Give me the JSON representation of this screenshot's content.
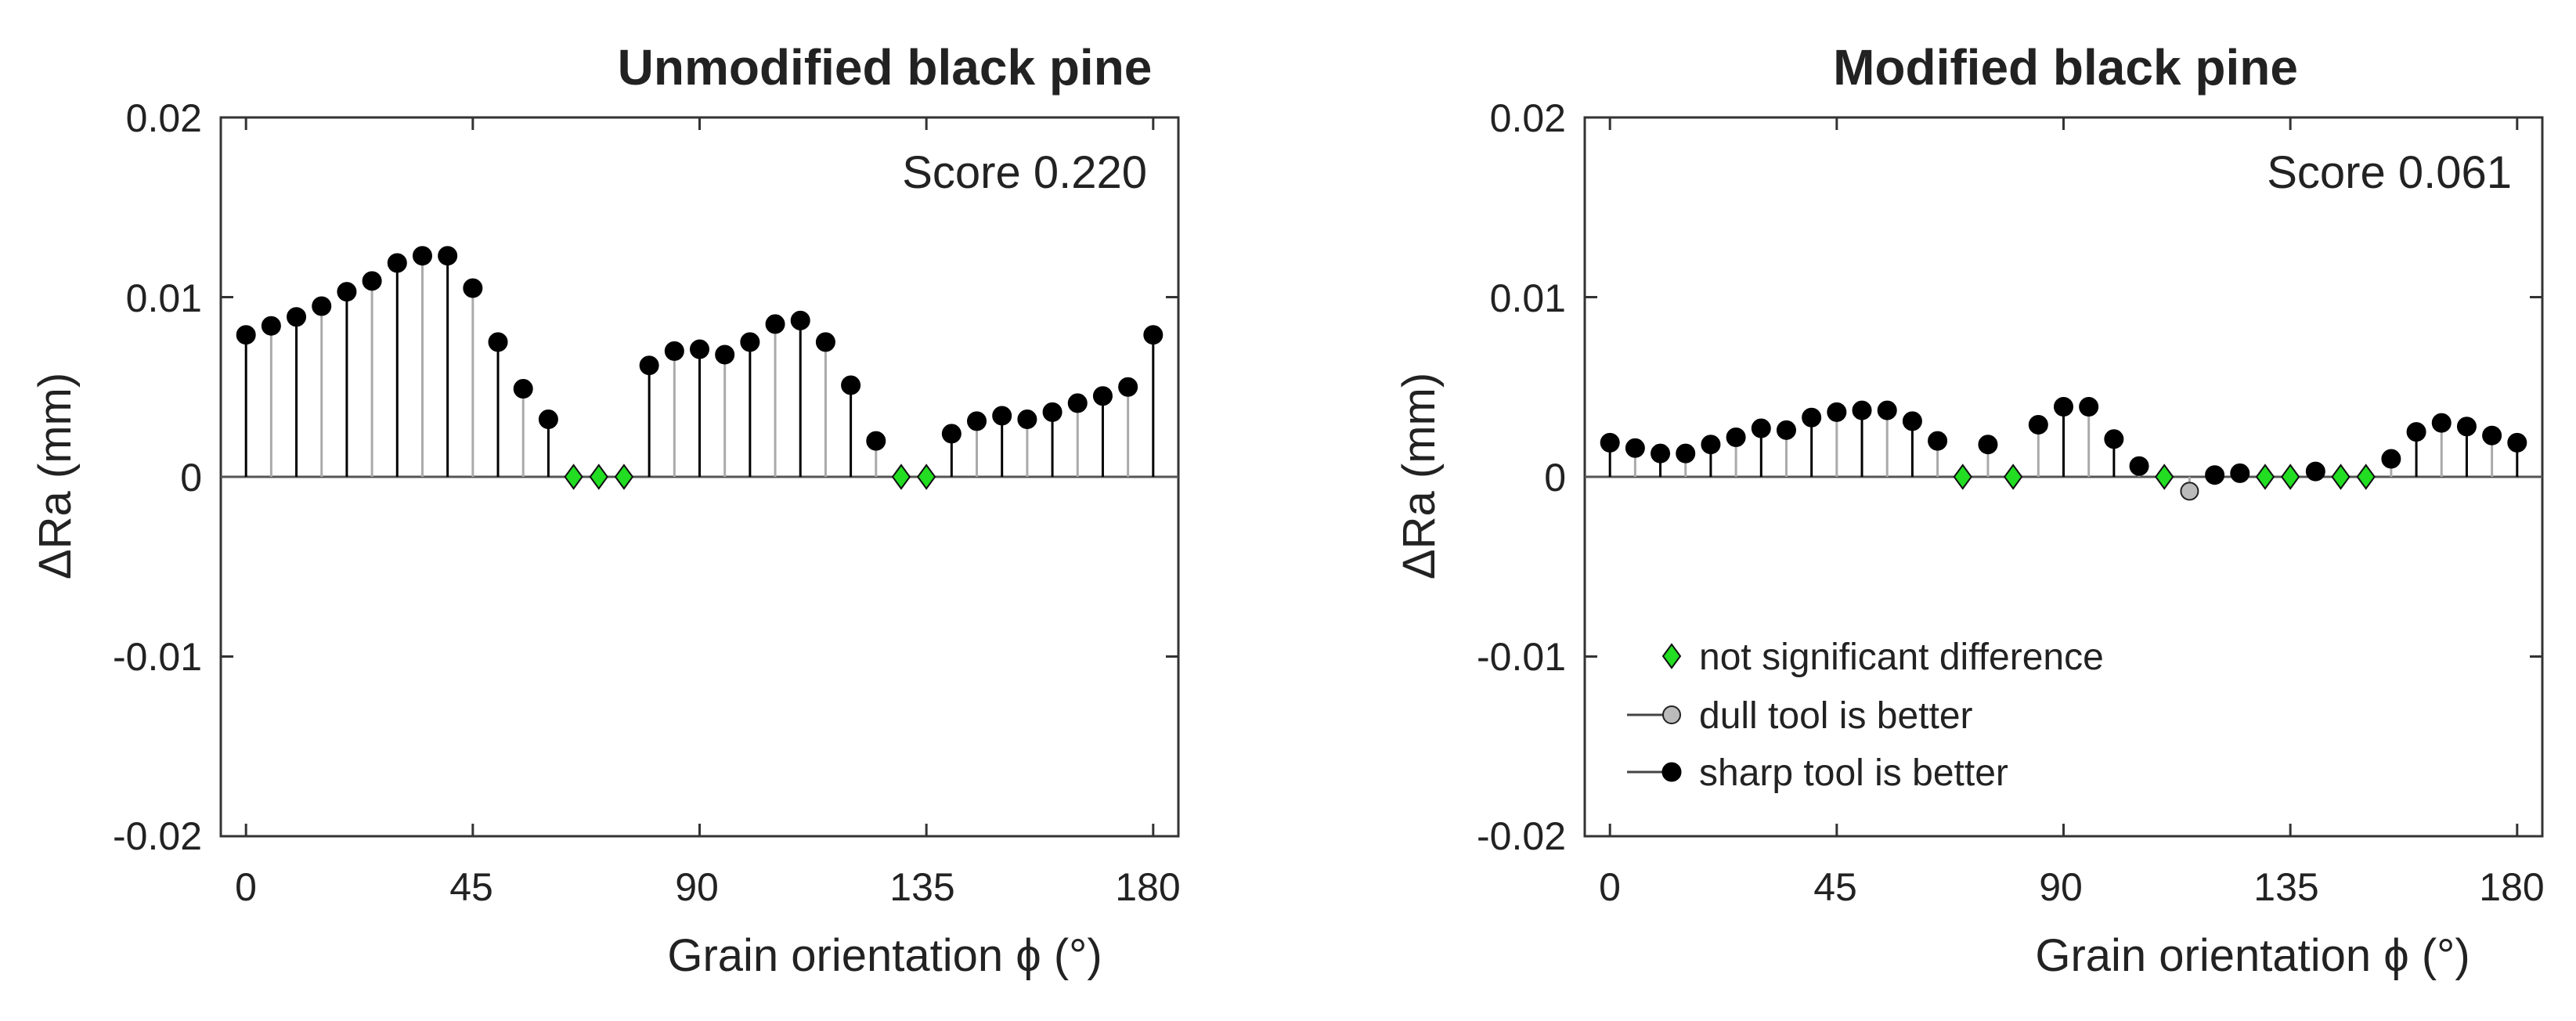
{
  "chart_data": [
    {
      "type": "stem",
      "title": "Unmodified black pine",
      "score_label": "Score 0.220",
      "xlabel": "Grain orientation ϕ (°)",
      "ylabel": "ΔRa (mm)",
      "xlim": [
        -5,
        185
      ],
      "ylim": [
        -0.02,
        0.02
      ],
      "xticks": [
        0,
        45,
        90,
        135,
        180
      ],
      "xtick_labels": [
        "0",
        "45",
        "90",
        "135",
        "180"
      ],
      "yticks": [
        0.02,
        0.01,
        0,
        -0.01,
        -0.02
      ],
      "ytick_labels": [
        "0.02",
        "0.01",
        "0",
        "-0.01",
        "-0.02"
      ],
      "points": [
        {
          "x": 0,
          "y": 0.0079,
          "kind": "sharp"
        },
        {
          "x": 5,
          "y": 0.0084,
          "kind": "sharp"
        },
        {
          "x": 10,
          "y": 0.0089,
          "kind": "sharp"
        },
        {
          "x": 15,
          "y": 0.0095,
          "kind": "sharp"
        },
        {
          "x": 20,
          "y": 0.0103,
          "kind": "sharp"
        },
        {
          "x": 25,
          "y": 0.0109,
          "kind": "sharp"
        },
        {
          "x": 30,
          "y": 0.0119,
          "kind": "sharp"
        },
        {
          "x": 35,
          "y": 0.0123,
          "kind": "sharp"
        },
        {
          "x": 40,
          "y": 0.0123,
          "kind": "sharp"
        },
        {
          "x": 45,
          "y": 0.0105,
          "kind": "sharp"
        },
        {
          "x": 50,
          "y": 0.0075,
          "kind": "sharp"
        },
        {
          "x": 55,
          "y": 0.0049,
          "kind": "sharp"
        },
        {
          "x": 60,
          "y": 0.0032,
          "kind": "sharp"
        },
        {
          "x": 65,
          "y": 0.0,
          "kind": "ns"
        },
        {
          "x": 70,
          "y": 0.0,
          "kind": "ns"
        },
        {
          "x": 75,
          "y": 0.0,
          "kind": "ns"
        },
        {
          "x": 80,
          "y": 0.0062,
          "kind": "sharp"
        },
        {
          "x": 85,
          "y": 0.007,
          "kind": "sharp"
        },
        {
          "x": 90,
          "y": 0.0071,
          "kind": "sharp"
        },
        {
          "x": 95,
          "y": 0.0068,
          "kind": "sharp"
        },
        {
          "x": 100,
          "y": 0.0075,
          "kind": "sharp"
        },
        {
          "x": 105,
          "y": 0.0085,
          "kind": "sharp"
        },
        {
          "x": 110,
          "y": 0.0087,
          "kind": "sharp"
        },
        {
          "x": 115,
          "y": 0.0075,
          "kind": "sharp"
        },
        {
          "x": 120,
          "y": 0.0051,
          "kind": "sharp"
        },
        {
          "x": 125,
          "y": 0.002,
          "kind": "sharp"
        },
        {
          "x": 130,
          "y": 0.0,
          "kind": "ns"
        },
        {
          "x": 135,
          "y": 0.0,
          "kind": "ns"
        },
        {
          "x": 140,
          "y": 0.0024,
          "kind": "sharp"
        },
        {
          "x": 145,
          "y": 0.0031,
          "kind": "sharp"
        },
        {
          "x": 150,
          "y": 0.0034,
          "kind": "sharp"
        },
        {
          "x": 155,
          "y": 0.0032,
          "kind": "sharp"
        },
        {
          "x": 160,
          "y": 0.0036,
          "kind": "sharp"
        },
        {
          "x": 165,
          "y": 0.0041,
          "kind": "sharp"
        },
        {
          "x": 170,
          "y": 0.0045,
          "kind": "sharp"
        },
        {
          "x": 175,
          "y": 0.005,
          "kind": "sharp"
        },
        {
          "x": 180,
          "y": 0.0079,
          "kind": "sharp"
        }
      ]
    },
    {
      "type": "stem",
      "title": "Modified black pine",
      "score_label": "Score 0.061",
      "xlabel": "Grain orientation ϕ (°)",
      "ylabel": "ΔRa (mm)",
      "xlim": [
        -5,
        185
      ],
      "ylim": [
        -0.02,
        0.02
      ],
      "xticks": [
        0,
        45,
        90,
        135,
        180
      ],
      "xtick_labels": [
        "0",
        "45",
        "90",
        "135",
        "180"
      ],
      "yticks": [
        0.02,
        0.01,
        0,
        -0.01,
        -0.02
      ],
      "ytick_labels": [
        "0.02",
        "0.01",
        "0",
        "-0.01",
        "-0.02"
      ],
      "legend": [
        {
          "label": "not significant difference",
          "kind": "ns"
        },
        {
          "label": "dull tool is better",
          "kind": "dull"
        },
        {
          "label": "sharp tool is better",
          "kind": "sharp"
        }
      ],
      "points": [
        {
          "x": 0,
          "y": 0.0019,
          "kind": "sharp"
        },
        {
          "x": 5,
          "y": 0.0016,
          "kind": "sharp"
        },
        {
          "x": 10,
          "y": 0.0013,
          "kind": "sharp"
        },
        {
          "x": 15,
          "y": 0.0013,
          "kind": "sharp"
        },
        {
          "x": 20,
          "y": 0.0018,
          "kind": "sharp"
        },
        {
          "x": 25,
          "y": 0.0022,
          "kind": "sharp"
        },
        {
          "x": 30,
          "y": 0.0027,
          "kind": "sharp"
        },
        {
          "x": 35,
          "y": 0.0026,
          "kind": "sharp"
        },
        {
          "x": 40,
          "y": 0.0033,
          "kind": "sharp"
        },
        {
          "x": 45,
          "y": 0.0036,
          "kind": "sharp"
        },
        {
          "x": 50,
          "y": 0.0037,
          "kind": "sharp"
        },
        {
          "x": 55,
          "y": 0.0037,
          "kind": "sharp"
        },
        {
          "x": 60,
          "y": 0.0031,
          "kind": "sharp"
        },
        {
          "x": 65,
          "y": 0.002,
          "kind": "sharp"
        },
        {
          "x": 70,
          "y": 0.0,
          "kind": "ns"
        },
        {
          "x": 75,
          "y": 0.0018,
          "kind": "sharp"
        },
        {
          "x": 80,
          "y": 0.0,
          "kind": "ns"
        },
        {
          "x": 85,
          "y": 0.0029,
          "kind": "sharp"
        },
        {
          "x": 90,
          "y": 0.0039,
          "kind": "sharp"
        },
        {
          "x": 95,
          "y": 0.0039,
          "kind": "sharp"
        },
        {
          "x": 100,
          "y": 0.0021,
          "kind": "sharp"
        },
        {
          "x": 105,
          "y": 0.0006,
          "kind": "sharp"
        },
        {
          "x": 110,
          "y": 0.0,
          "kind": "ns"
        },
        {
          "x": 115,
          "y": -0.0008,
          "kind": "dull"
        },
        {
          "x": 120,
          "y": 0.0001,
          "kind": "sharp"
        },
        {
          "x": 125,
          "y": 0.0002,
          "kind": "sharp"
        },
        {
          "x": 130,
          "y": 0.0,
          "kind": "ns"
        },
        {
          "x": 135,
          "y": 0.0,
          "kind": "ns"
        },
        {
          "x": 140,
          "y": 0.0003,
          "kind": "sharp"
        },
        {
          "x": 145,
          "y": 0.0,
          "kind": "ns"
        },
        {
          "x": 150,
          "y": 0.0,
          "kind": "ns"
        },
        {
          "x": 155,
          "y": 0.001,
          "kind": "sharp"
        },
        {
          "x": 160,
          "y": 0.0025,
          "kind": "sharp"
        },
        {
          "x": 165,
          "y": 0.003,
          "kind": "sharp"
        },
        {
          "x": 170,
          "y": 0.0028,
          "kind": "sharp"
        },
        {
          "x": 175,
          "y": 0.0023,
          "kind": "sharp"
        },
        {
          "x": 180,
          "y": 0.0019,
          "kind": "sharp"
        }
      ]
    }
  ],
  "colors": {
    "not_significant": "#22dd22",
    "dull": "#bbbbbb",
    "sharp": "#000000",
    "axis": "#333333",
    "stem_even": "#000000",
    "stem_odd": "#aaaaaa"
  }
}
